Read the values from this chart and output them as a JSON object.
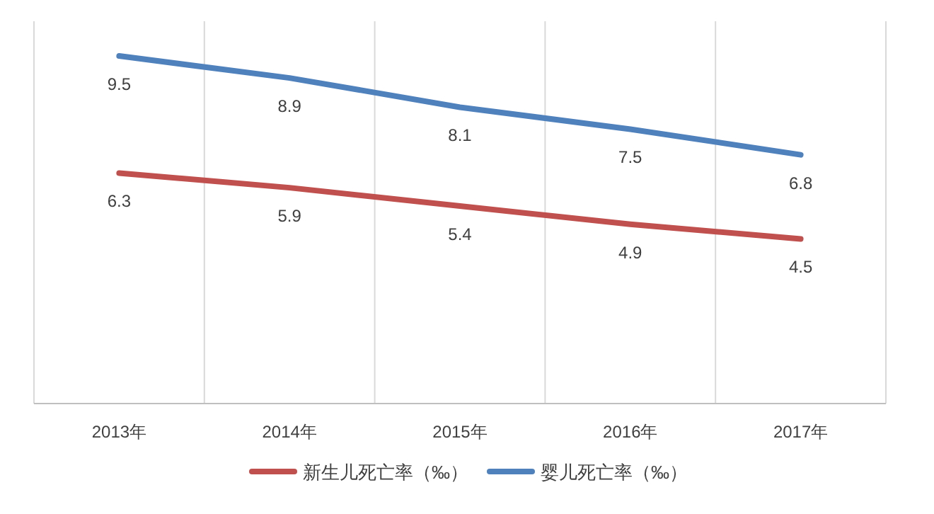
{
  "chart_data": {
    "type": "line",
    "categories": [
      "2013年",
      "2014年",
      "2015年",
      "2016年",
      "2017年"
    ],
    "series": [
      {
        "name": "新生儿死亡率（‰）",
        "color": "#c0504d",
        "values": [
          6.3,
          5.9,
          5.4,
          4.9,
          4.5
        ]
      },
      {
        "name": "婴儿死亡率（‰）",
        "color": "#4f81bd",
        "values": [
          9.5,
          8.9,
          8.1,
          7.5,
          6.8
        ]
      }
    ],
    "data_labels": true,
    "grid": "x",
    "legend": "bottom",
    "marker": "none",
    "line_style": "solid"
  }
}
